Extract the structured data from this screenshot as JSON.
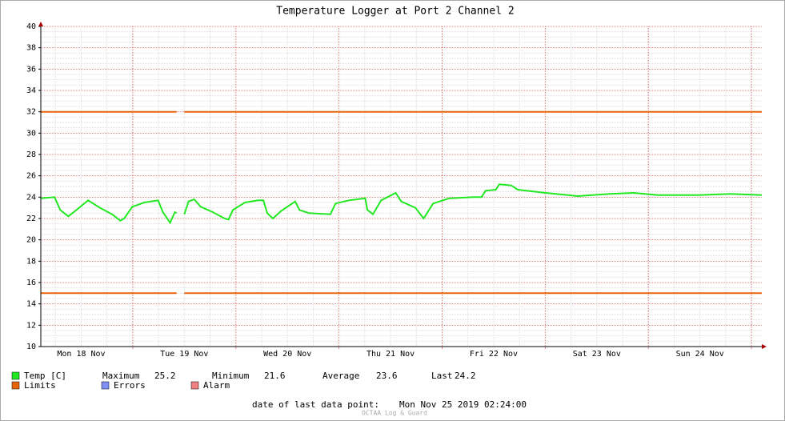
{
  "chart_data": {
    "type": "line",
    "title": "Temperature Logger at Port 2 Channel 2",
    "xlim": [
      2.6,
      170.4
    ],
    "xticks": [
      {
        "value": 12,
        "label": "Mon 18 Nov"
      },
      {
        "value": 36,
        "label": "Tue 19 Nov"
      },
      {
        "value": 60,
        "label": "Wed 20 Nov"
      },
      {
        "value": 84,
        "label": "Thu 21 Nov"
      },
      {
        "value": 108,
        "label": "Fri 22 Nov"
      },
      {
        "value": 132,
        "label": "Sat 23 Nov"
      },
      {
        "value": 156,
        "label": "Sun 24 Nov"
      }
    ],
    "xgrid": [
      24,
      48,
      72,
      96,
      120,
      144,
      168
    ],
    "ylim": [
      10,
      40
    ],
    "yticks": [
      10,
      12,
      14,
      16,
      18,
      20,
      22,
      24,
      26,
      28,
      30,
      32,
      34,
      36,
      38,
      40
    ],
    "grid": true,
    "series": [
      {
        "name": "Temp [C]",
        "color": "#22e822",
        "x": [
          2.6,
          5.8,
          7.1,
          9.0,
          11.2,
          13.6,
          16.4,
          19.2,
          21.1,
          22.0,
          23.9,
          26.7,
          29.9,
          31.0,
          32.7,
          33.8,
          34.2,
          35.1,
          36.0,
          37.0,
          38.3,
          39.8,
          42.6,
          45.4,
          46.3,
          47.3,
          50.1,
          53.2,
          54.4,
          55.3,
          56.6,
          58.5,
          61.8,
          62.8,
          65.0,
          70.0,
          71.2,
          74.3,
          78.1,
          78.6,
          79.9,
          81.8,
          85.2,
          86.5,
          89.8,
          91.7,
          93.9,
          97.7,
          103.3,
          105.2,
          106.1,
          108.5,
          109.3,
          112.1,
          113.6,
          120.1,
          127.6,
          135.0,
          140.6,
          146.2,
          155.6,
          163.1,
          170.4
        ],
        "values": [
          23.9,
          24.0,
          22.8,
          22.2,
          22.9,
          23.7,
          23.0,
          22.4,
          21.8,
          22.0,
          23.1,
          23.5,
          23.7,
          22.6,
          21.6,
          22.6,
          22.5,
          null,
          22.4,
          23.6,
          23.8,
          23.1,
          22.6,
          22.0,
          21.9,
          22.8,
          23.5,
          23.7,
          23.7,
          22.5,
          22.0,
          22.7,
          23.6,
          22.8,
          22.5,
          22.4,
          23.4,
          23.7,
          23.9,
          22.8,
          22.4,
          23.7,
          24.4,
          23.6,
          23.0,
          22.0,
          23.4,
          23.9,
          24.0,
          24.0,
          24.6,
          24.7,
          25.2,
          25.1,
          24.7,
          24.4,
          24.1,
          24.3,
          24.4,
          24.2,
          24.2,
          24.3,
          24.2
        ]
      },
      {
        "name": "Limits",
        "color": "#e8640a",
        "x": [
          2.6,
          34.2,
          35.1,
          36.0,
          170.4
        ],
        "values": [
          32,
          32,
          null,
          32,
          32
        ],
        "lower": [
          15,
          15,
          null,
          15,
          15
        ]
      },
      {
        "name": "Errors",
        "color": "#7f8ff5"
      },
      {
        "name": "Alarm",
        "color": "#f08080"
      }
    ],
    "stats": [
      {
        "label": "Maximum",
        "value": 25.2
      },
      {
        "label": "Minimum",
        "value": 21.6
      },
      {
        "label": "Average",
        "value": 23.6
      },
      {
        "label": "Last",
        "value": 24.2
      }
    ],
    "footer": {
      "label": "date of last data point:",
      "value": "Mon Nov 25 2019 02:24:00"
    },
    "watermark": "OCTAA Log & Guard"
  }
}
